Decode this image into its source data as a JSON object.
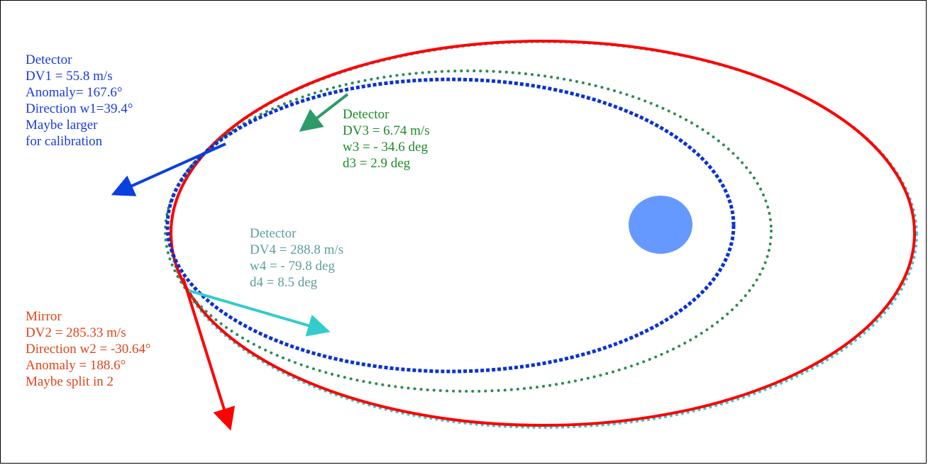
{
  "colors": {
    "blue_text": "#1a3cdc",
    "green_text": "#1e8a2a",
    "teal_text": "#5f9e9e",
    "red_text": "#e0441a",
    "orbit_red": "#ff0000",
    "orbit_cyan": "#33cccc",
    "orbit_green": "#2e8b57",
    "orbit_blue": "#0a32d2",
    "arrow_blue": "#0a40e0",
    "arrow_green": "#2e9a6a",
    "arrow_cyan": "#33cccc",
    "arrow_red": "#ff0000",
    "planet": "#6699ff"
  },
  "labels": {
    "detector1": {
      "title": "Detector",
      "dv": "DV1 = 55.8 m/s",
      "anomaly": "Anomaly= 167.6°",
      "direction": "Direction w1=39.4°",
      "note1": "Maybe larger",
      "note2": "for calibration"
    },
    "detector3": {
      "title": "Detector",
      "dv": "DV3 = 6.74 m/s",
      "w": "w3 = - 34.6 deg",
      "d": "d3 = 2.9 deg"
    },
    "detector4": {
      "title": "Detector",
      "dv": "DV4 = 288.8 m/s",
      "w": "w4 = - 79.8 deg",
      "d": "d4 = 8.5 deg"
    },
    "mirror": {
      "title": "Mirror",
      "dv": "DV2 = 285.33 m/s",
      "direction": "Direction w2 = -30.64°",
      "anomaly": "Anomaly = 188.6°",
      "note": "Maybe split in 2"
    }
  }
}
